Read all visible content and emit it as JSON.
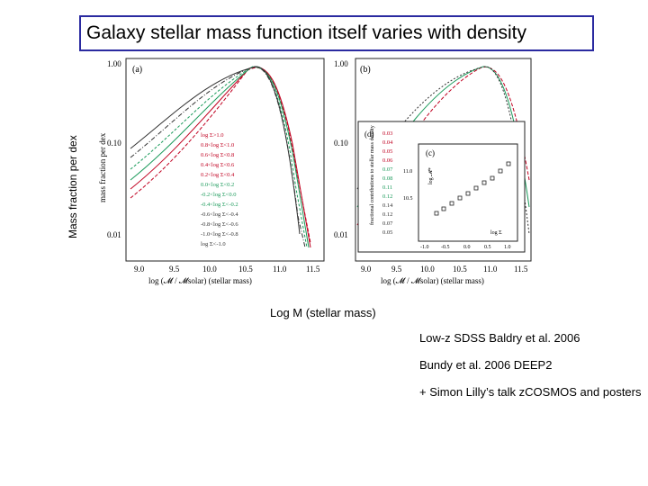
{
  "slide": {
    "title": "Galaxy stellar mass function itself varies with density",
    "y_axis_label": "Mass fraction per dex",
    "x_axis_caption": "Log M (stellar mass)",
    "references": [
      "Low-z SDSS Baldry et al. 2006",
      "Bundy et al. 2006 DEEP2",
      "+ Simon Lilly’s talk zCOSMOS and posters"
    ]
  },
  "figure": {
    "panel_a": {
      "tag": "(a)",
      "ylabel": "mass fraction per dex",
      "xlabel": "log (𝓜 / 𝓜solar) (stellar mass)",
      "yticks": [
        "1.00",
        "0.10",
        "0.01"
      ],
      "xticks": [
        "9.0",
        "9.5",
        "10.0",
        "10.5",
        "11.0",
        "11.5"
      ],
      "legend": [
        "log Σ>1.0",
        "0.8<log Σ<1.0",
        "0.6<log Σ<0.8",
        "0.4<log Σ<0.6",
        "0.2<log Σ<0.4",
        "0.0<log Σ<0.2",
        "-0.2<log Σ<0.0",
        "-0.4<log Σ<-0.2",
        "-0.6<log Σ<-0.4",
        "-0.8<log Σ<-0.6",
        "-1.0<log Σ<-0.8",
        "log Σ<-1.0"
      ]
    },
    "panel_b": {
      "tag": "(b)",
      "xlabel": "log (𝓜 / 𝓜solar) (stellar mass)",
      "yticks": [
        "1.00",
        "0.10",
        "0.01"
      ],
      "xticks": [
        "9.0",
        "9.5",
        "10.0",
        "10.5",
        "11.0",
        "11.5"
      ]
    },
    "panel_d": {
      "tag": "(d)",
      "ylabel": "fractional contributions to stellar mass density",
      "values": [
        "0.03",
        "0.04",
        "0.05",
        "0.06",
        "0.07",
        "0.08",
        "0.11",
        "0.12",
        "0.14",
        "0.12",
        "0.07",
        "0.05"
      ]
    },
    "panel_c": {
      "tag": "(c)",
      "ylabel": "log 𝓜*",
      "xlabel": "log Σ",
      "yticks": [
        "11.0",
        "10.5"
      ],
      "xticks": [
        "-1.0",
        "-0.5",
        "0.0",
        "0.5",
        "1.0"
      ]
    },
    "colors": [
      "#c00020",
      "#c00020",
      "#c00020",
      "#c00020",
      "#c00020",
      "#1a9a5a",
      "#1a9a5a",
      "#1a9a5a",
      "#333333",
      "#333333",
      "#333333",
      "#333333"
    ]
  }
}
